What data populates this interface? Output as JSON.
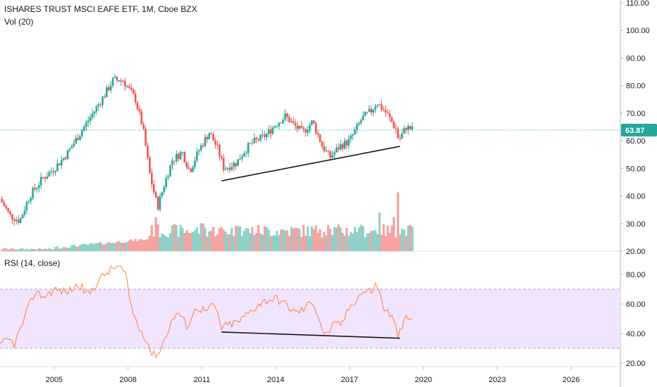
{
  "header": {
    "title": "ISHARES TRUST MSCI EAFE ETF, 1M, Cboe BZX",
    "volume_label": "Vol (20)",
    "rsi_label": "RSI (14, close)"
  },
  "colors": {
    "up": "#26a69a",
    "down": "#ef5350",
    "vol_up": "#8fd0c8",
    "vol_down": "#f4a3a1",
    "rsi_line": "#ff7f3f",
    "rsi_band": "#f0e5fd",
    "last_price": "#26a69a",
    "trendline": "#131722"
  },
  "chart_data": [
    {
      "type": "candlestick",
      "name": "price",
      "y_ticks": [
        "110.00",
        "100.00",
        "90.00",
        "80.00",
        "70.00",
        "60.00",
        "50.00",
        "40.00",
        "30.00",
        "20.00"
      ],
      "ylim": [
        18,
        114
      ],
      "last_price": "63.87",
      "x_ticks": [
        "2005",
        "2008",
        "2011",
        "2014",
        "2017",
        "2020",
        "2023",
        "2026"
      ],
      "xlim": [
        2002.8,
        2028.0
      ],
      "anchors": [
        [
          2002.8,
          39
        ],
        [
          2003.2,
          33
        ],
        [
          2003.6,
          31
        ],
        [
          2004.0,
          40
        ],
        [
          2004.5,
          46
        ],
        [
          2005.0,
          50
        ],
        [
          2005.5,
          55
        ],
        [
          2006.0,
          62
        ],
        [
          2006.5,
          69
        ],
        [
          2007.0,
          76
        ],
        [
          2007.4,
          82
        ],
        [
          2007.8,
          82
        ],
        [
          2008.3,
          75
        ],
        [
          2008.6,
          65
        ],
        [
          2008.9,
          47
        ],
        [
          2009.2,
          36
        ],
        [
          2009.5,
          45
        ],
        [
          2009.8,
          53
        ],
        [
          2010.2,
          56
        ],
        [
          2010.5,
          49
        ],
        [
          2010.9,
          57
        ],
        [
          2011.3,
          63
        ],
        [
          2011.6,
          58
        ],
        [
          2011.9,
          50
        ],
        [
          2012.4,
          52
        ],
        [
          2012.7,
          56
        ],
        [
          2013.0,
          59
        ],
        [
          2013.6,
          62
        ],
        [
          2014.0,
          66
        ],
        [
          2014.4,
          69
        ],
        [
          2014.7,
          66
        ],
        [
          2015.1,
          63
        ],
        [
          2015.5,
          67
        ],
        [
          2015.9,
          58
        ],
        [
          2016.2,
          54
        ],
        [
          2016.6,
          58
        ],
        [
          2017.0,
          60
        ],
        [
          2017.5,
          68
        ],
        [
          2017.9,
          71
        ],
        [
          2018.1,
          74
        ],
        [
          2018.5,
          70
        ],
        [
          2018.9,
          64
        ],
        [
          2019.0,
          60
        ],
        [
          2019.3,
          65
        ],
        [
          2019.6,
          63.87
        ]
      ],
      "trendline": [
        [
          2011.8,
          45.5
        ],
        [
          2019.05,
          58.0
        ]
      ]
    },
    {
      "type": "bar",
      "name": "Vol (20)",
      "note_values": "relative volume, scaled to panel",
      "spikes": [
        [
          2009.1,
          0.55
        ],
        [
          2011.0,
          0.45
        ],
        [
          2012.5,
          0.4
        ],
        [
          2015.8,
          0.35
        ],
        [
          2016.1,
          0.42
        ],
        [
          2017.4,
          0.38
        ],
        [
          2018.2,
          0.62
        ],
        [
          2018.8,
          0.55
        ],
        [
          2018.95,
          0.95
        ],
        [
          2019.6,
          0.55
        ]
      ]
    },
    {
      "type": "line",
      "name": "RSI (14, close)",
      "y_ticks": [
        "80.00",
        "60.00",
        "40.00",
        "20.00"
      ],
      "ylim": [
        17,
        88
      ],
      "band": [
        30,
        70
      ],
      "anchors": [
        [
          2002.8,
          31
        ],
        [
          2003.1,
          36
        ],
        [
          2003.4,
          33
        ],
        [
          2003.8,
          50
        ],
        [
          2004.2,
          68
        ],
        [
          2004.6,
          65
        ],
        [
          2005.0,
          70
        ],
        [
          2005.5,
          68
        ],
        [
          2006.0,
          73
        ],
        [
          2006.4,
          66
        ],
        [
          2006.8,
          76
        ],
        [
          2007.2,
          82
        ],
        [
          2007.6,
          86
        ],
        [
          2007.9,
          80
        ],
        [
          2008.1,
          60
        ],
        [
          2008.4,
          45
        ],
        [
          2008.7,
          38
        ],
        [
          2009.0,
          25
        ],
        [
          2009.3,
          28
        ],
        [
          2009.6,
          42
        ],
        [
          2010.0,
          55
        ],
        [
          2010.4,
          45
        ],
        [
          2010.8,
          58
        ],
        [
          2011.2,
          55
        ],
        [
          2011.5,
          60
        ],
        [
          2011.8,
          44
        ],
        [
          2012.1,
          46
        ],
        [
          2012.5,
          48
        ],
        [
          2012.9,
          54
        ],
        [
          2013.3,
          60
        ],
        [
          2013.7,
          63
        ],
        [
          2014.0,
          64
        ],
        [
          2014.4,
          60
        ],
        [
          2014.8,
          54
        ],
        [
          2015.2,
          57
        ],
        [
          2015.5,
          63
        ],
        [
          2015.8,
          48
        ],
        [
          2016.0,
          38
        ],
        [
          2016.3,
          45
        ],
        [
          2016.7,
          47
        ],
        [
          2017.0,
          58
        ],
        [
          2017.5,
          68
        ],
        [
          2017.9,
          69
        ],
        [
          2018.1,
          74
        ],
        [
          2018.4,
          57
        ],
        [
          2018.7,
          52
        ],
        [
          2019.0,
          38
        ],
        [
          2019.3,
          51
        ],
        [
          2019.6,
          48
        ]
      ],
      "trendline": [
        [
          2011.8,
          41.0
        ],
        [
          2019.05,
          36.8
        ]
      ]
    }
  ]
}
